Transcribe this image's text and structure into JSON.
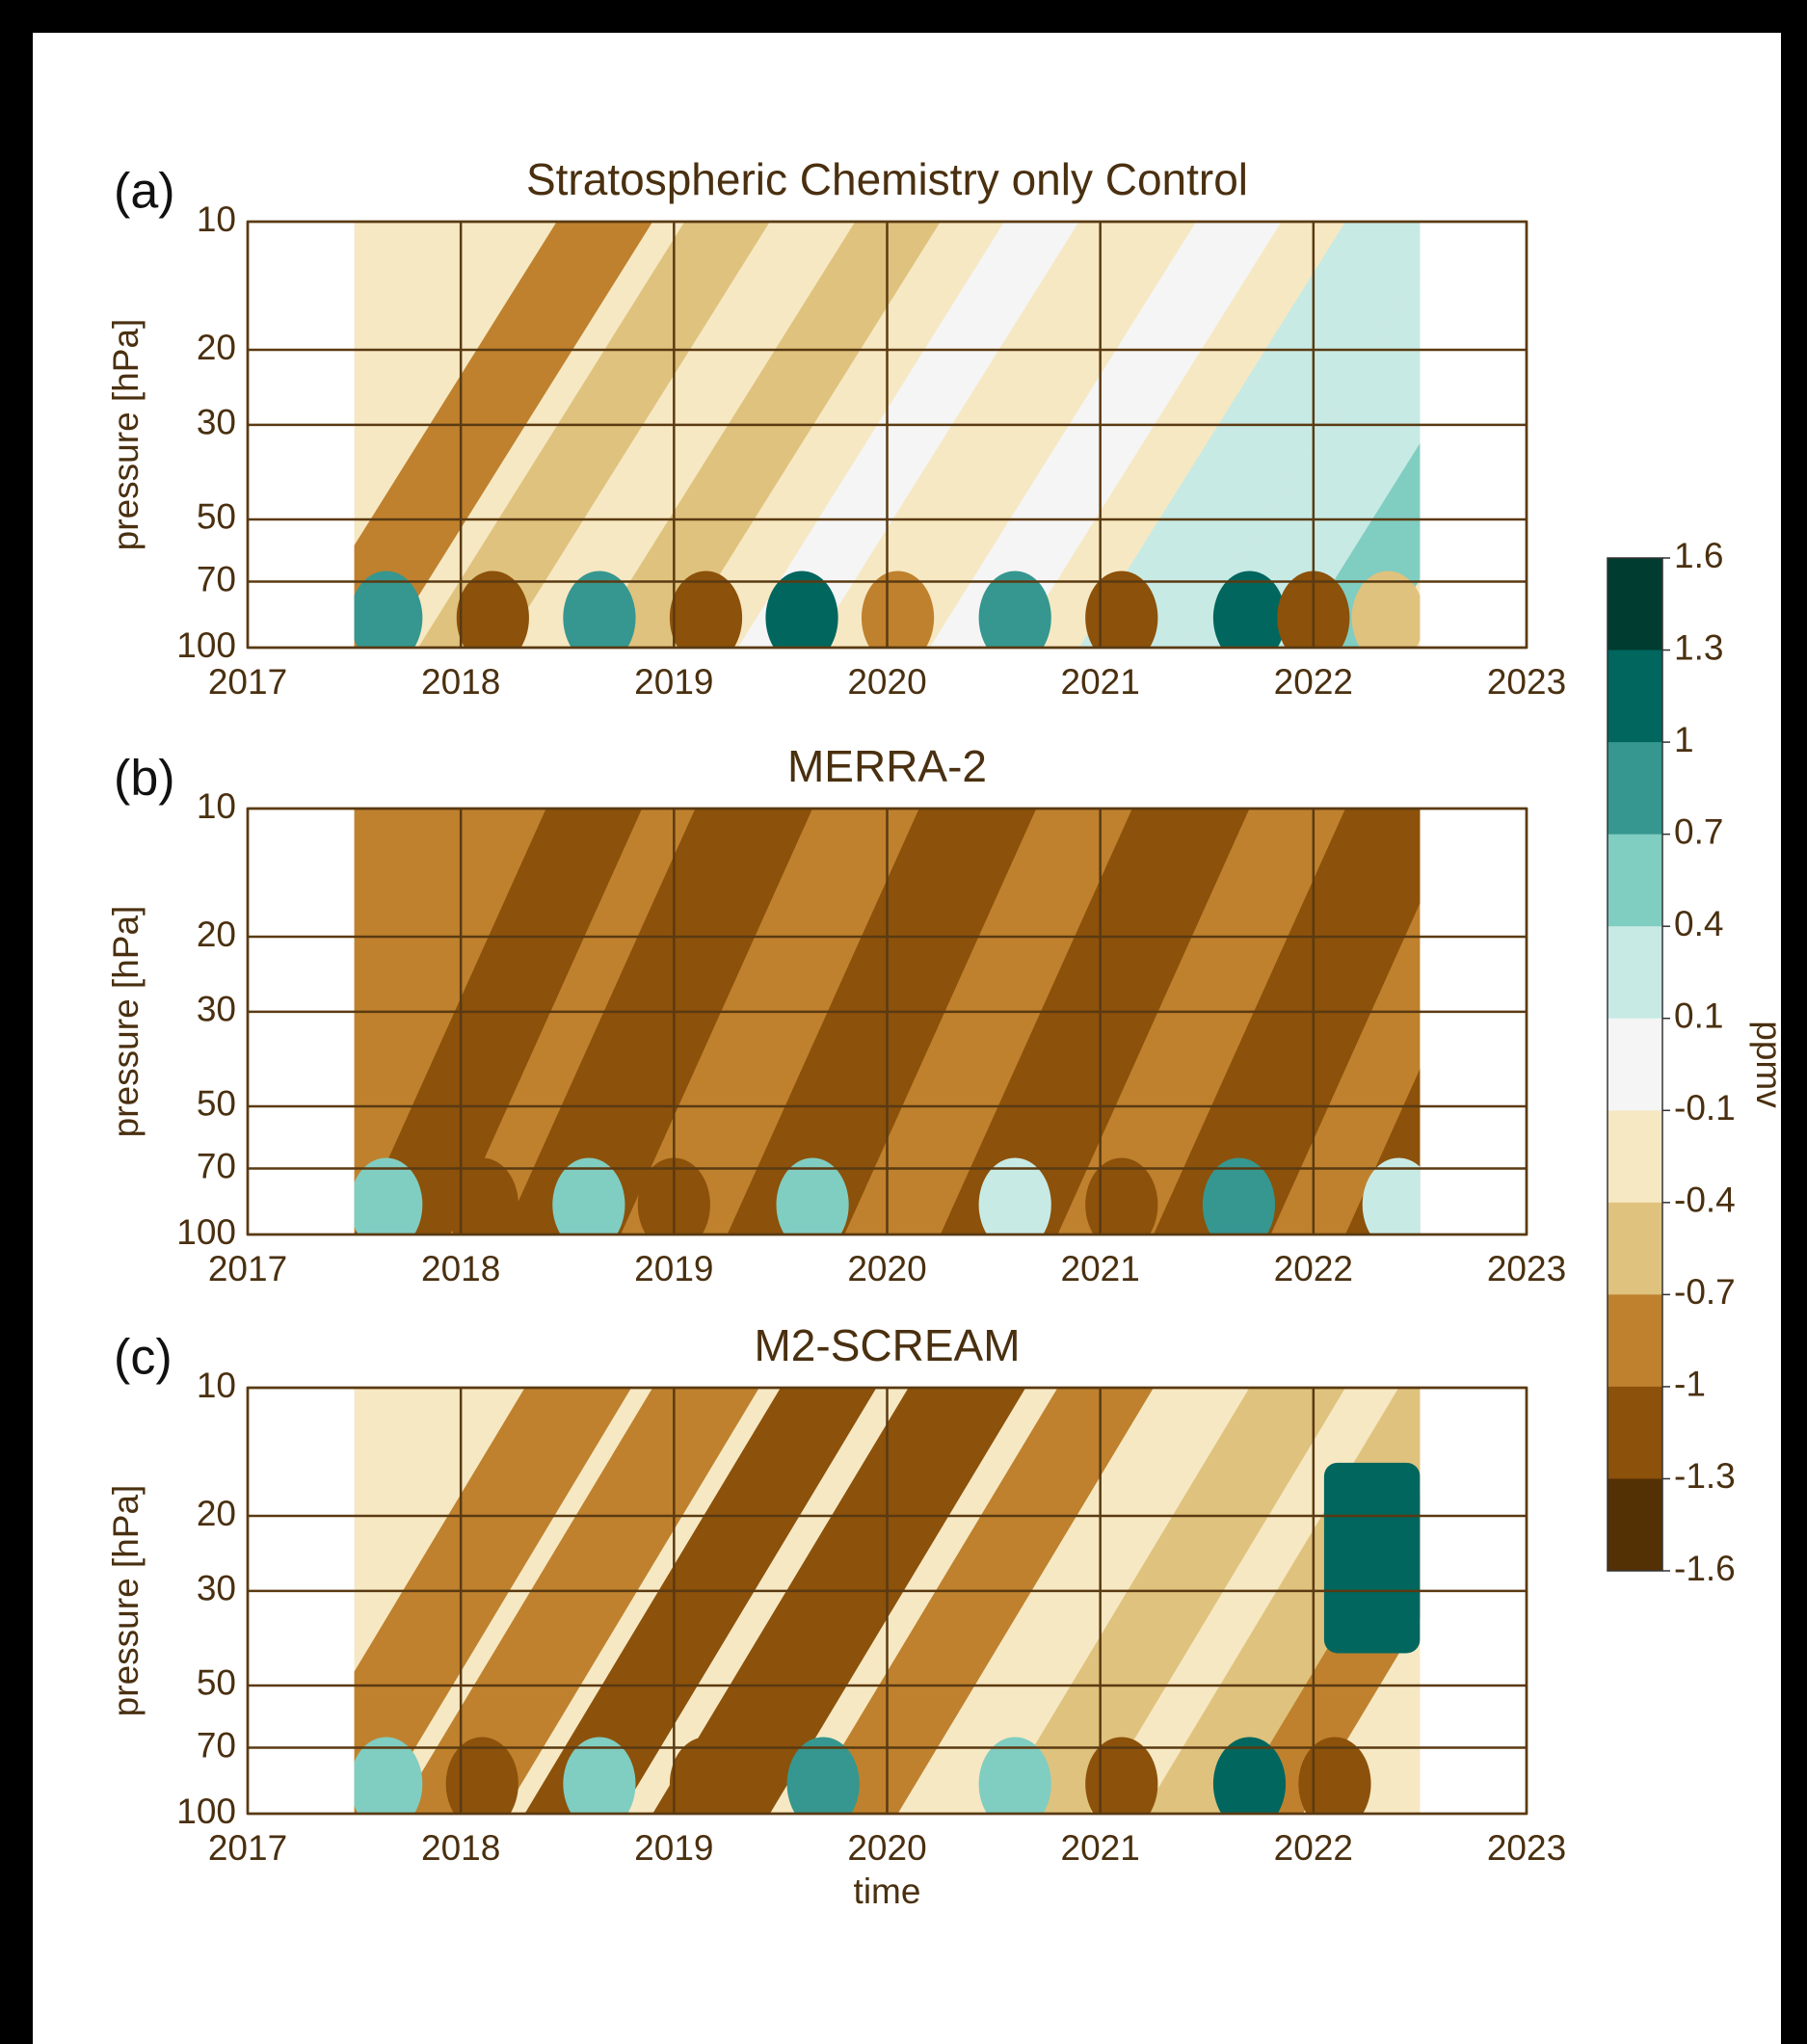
{
  "chart_data": [
    {
      "type": "contour",
      "panel_label": "(a)",
      "title": "Stratospheric Chemistry only Control",
      "y_label": "pressure [hPa]",
      "xlim": [
        2017,
        2023
      ],
      "xticks": [
        2017,
        2018,
        2019,
        2020,
        2021,
        2022,
        2023
      ],
      "ylim": [
        100,
        10
      ],
      "yticks": [
        10,
        20,
        30,
        50,
        70,
        100
      ],
      "log_y": true,
      "grid": true,
      "data_extent": [
        2017.5,
        2022.5
      ]
    },
    {
      "type": "contour",
      "panel_label": "(b)",
      "title": "MERRA-2",
      "y_label": "pressure [hPa]",
      "xlim": [
        2017,
        2023
      ],
      "xticks": [
        2017,
        2018,
        2019,
        2020,
        2021,
        2022,
        2023
      ],
      "ylim": [
        100,
        10
      ],
      "yticks": [
        10,
        20,
        30,
        50,
        70,
        100
      ],
      "log_y": true,
      "grid": true,
      "data_extent": [
        2017.5,
        2022.5
      ]
    },
    {
      "type": "contour",
      "panel_label": "(c)",
      "title": "M2-SCREAM",
      "y_label": "pressure [hPa]",
      "x_label": "time",
      "xlim": [
        2017,
        2023
      ],
      "xticks": [
        2017,
        2018,
        2019,
        2020,
        2021,
        2022,
        2023
      ],
      "ylim": [
        100,
        10
      ],
      "yticks": [
        10,
        20,
        30,
        50,
        70,
        100
      ],
      "log_y": true,
      "grid": true,
      "data_extent": [
        2017.5,
        2022.5
      ]
    }
  ],
  "colorbar": {
    "label": "ppmv",
    "ticks": [
      1.6,
      1.3,
      1.0,
      0.7,
      0.4,
      0.1,
      -0.1,
      -0.4,
      -0.7,
      -1.0,
      -1.3,
      -1.6
    ],
    "colors": [
      "#003c30",
      "#01665e",
      "#35978f",
      "#80cdc1",
      "#c7eae5",
      "#f5f5f5",
      "#f6e8c3",
      "#dfc27d",
      "#bf812d",
      "#8c510a",
      "#543005"
    ]
  }
}
